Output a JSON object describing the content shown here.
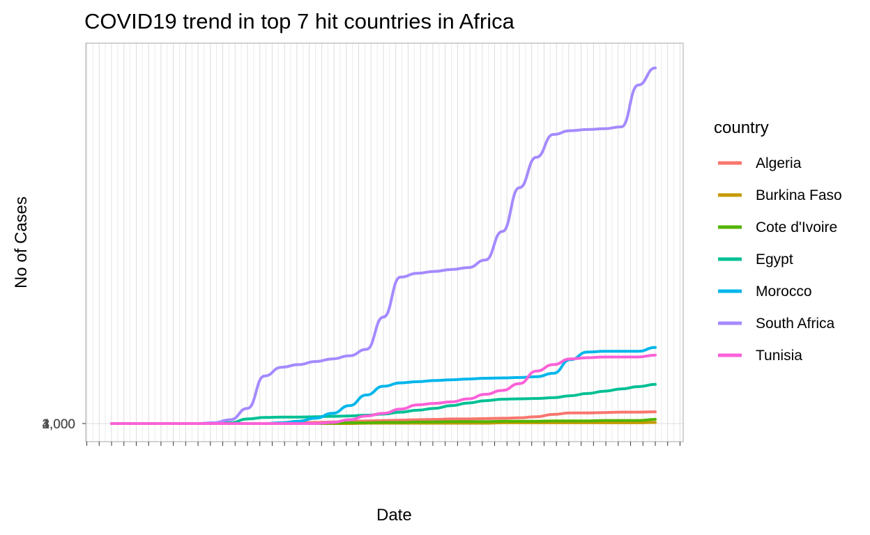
{
  "chart_data": {
    "type": "line",
    "title": "COVID19 trend in top 7 hit countries in Africa",
    "xlabel": "Date",
    "ylabel": "No of Cases",
    "y_tick_labels_overlapping": [
      "1,000",
      "2,000",
      "3,000",
      "4,000"
    ],
    "legend": {
      "title": "country",
      "placement": "right"
    },
    "grid": true,
    "x": [
      0,
      5,
      10,
      15,
      20,
      25,
      30,
      35,
      40,
      45,
      50,
      55,
      60,
      65,
      70,
      75,
      80,
      85,
      90,
      95,
      100,
      105,
      110,
      115,
      120,
      125,
      130,
      135,
      140,
      145,
      150,
      155,
      160
    ],
    "series": [
      {
        "name": "Algeria",
        "color": "#F8766D",
        "values": [
          0,
          0,
          0,
          0,
          0,
          0,
          0,
          0,
          0,
          0,
          0,
          0.002,
          0.003,
          0.004,
          0.006,
          0.007,
          0.008,
          0.009,
          0.01,
          0.011,
          0.012,
          0.012,
          0.013,
          0.014,
          0.015,
          0.018,
          0.024,
          0.028,
          0.028,
          0.029,
          0.03,
          0.03,
          0.031
        ]
      },
      {
        "name": "Burkina Faso",
        "color": "#C49A00",
        "values": [
          0,
          0,
          0,
          0,
          0,
          0,
          0,
          0,
          0,
          0,
          0,
          0,
          0,
          0,
          0,
          0.001,
          0.001,
          0.001,
          0.001,
          0.001,
          0.001,
          0.001,
          0.001,
          0.002,
          0.002,
          0.002,
          0.002,
          0.002,
          0.002,
          0.002,
          0.002,
          0.002,
          0.003
        ]
      },
      {
        "name": "Cote d'Ivoire",
        "color": "#53B400",
        "values": [
          0,
          0,
          0,
          0,
          0,
          0,
          0,
          0,
          0,
          0,
          0,
          0,
          0,
          0.001,
          0.002,
          0.002,
          0.003,
          0.003,
          0.004,
          0.004,
          0.005,
          0.005,
          0.005,
          0.006,
          0.006,
          0.006,
          0.007,
          0.007,
          0.007,
          0.008,
          0.008,
          0.008,
          0.011
        ]
      },
      {
        "name": "Egypt",
        "color": "#00C094",
        "values": [
          0,
          0,
          0,
          0,
          0,
          0,
          0,
          0.002,
          0.012,
          0.016,
          0.017,
          0.017,
          0.018,
          0.019,
          0.02,
          0.022,
          0.025,
          0.03,
          0.035,
          0.04,
          0.047,
          0.054,
          0.06,
          0.064,
          0.065,
          0.066,
          0.068,
          0.073,
          0.079,
          0.085,
          0.091,
          0.097,
          0.103
        ]
      },
      {
        "name": "Morocco",
        "color": "#00B6EB",
        "values": [
          0,
          0,
          0,
          0,
          0,
          0,
          0,
          0,
          0,
          0,
          0.002,
          0.006,
          0.014,
          0.027,
          0.047,
          0.075,
          0.098,
          0.107,
          0.11,
          0.113,
          0.115,
          0.117,
          0.119,
          0.12,
          0.121,
          0.123,
          0.132,
          0.168,
          0.188,
          0.19,
          0.19,
          0.19,
          0.2
        ]
      },
      {
        "name": "South Africa",
        "color": "#A58AFF",
        "values": [
          0,
          0,
          0,
          0,
          0,
          0,
          0.002,
          0.01,
          0.04,
          0.125,
          0.148,
          0.155,
          0.163,
          0.17,
          0.178,
          0.195,
          0.28,
          0.385,
          0.395,
          0.4,
          0.405,
          0.41,
          0.43,
          0.505,
          0.62,
          0.7,
          0.76,
          0.77,
          0.773,
          0.775,
          0.78,
          0.89,
          0.935
        ]
      },
      {
        "name": "Tunisia",
        "color": "#FB61D7",
        "values": [
          0,
          0,
          0,
          0,
          0,
          0,
          0,
          0,
          0,
          0,
          0,
          0,
          0,
          0.003,
          0.01,
          0.02,
          0.027,
          0.038,
          0.049,
          0.053,
          0.057,
          0.065,
          0.077,
          0.087,
          0.105,
          0.138,
          0.155,
          0.17,
          0.173,
          0.175,
          0.175,
          0.175,
          0.18
        ]
      }
    ]
  }
}
